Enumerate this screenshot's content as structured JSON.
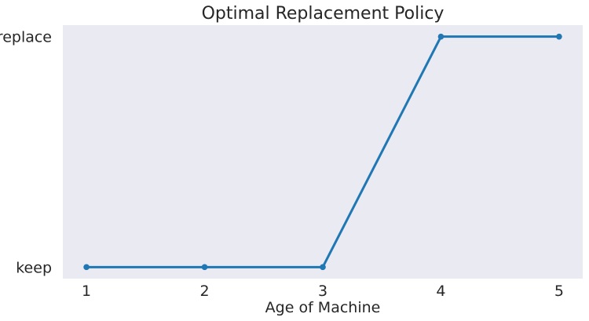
{
  "chart_data": {
    "type": "line",
    "title": "Optimal Replacement Policy",
    "xlabel": "Age of Machine",
    "ylabel": "",
    "x": [
      1,
      2,
      3,
      4,
      5
    ],
    "xticks": [
      "1",
      "2",
      "3",
      "4",
      "5"
    ],
    "xlim": [
      0.8,
      5.2
    ],
    "y_categories": [
      "keep",
      "replace"
    ],
    "yticks": [
      "keep",
      "replace"
    ],
    "ylim": [
      -0.05,
      1.05
    ],
    "series": [
      {
        "values": [
          "keep",
          "keep",
          "keep",
          "replace",
          "replace"
        ],
        "numeric_values": [
          0,
          0,
          0,
          1,
          1
        ],
        "color": "#1f77b4",
        "marker": "circle"
      }
    ],
    "grid": false,
    "background": "#eaeaf2",
    "legend": "none"
  }
}
